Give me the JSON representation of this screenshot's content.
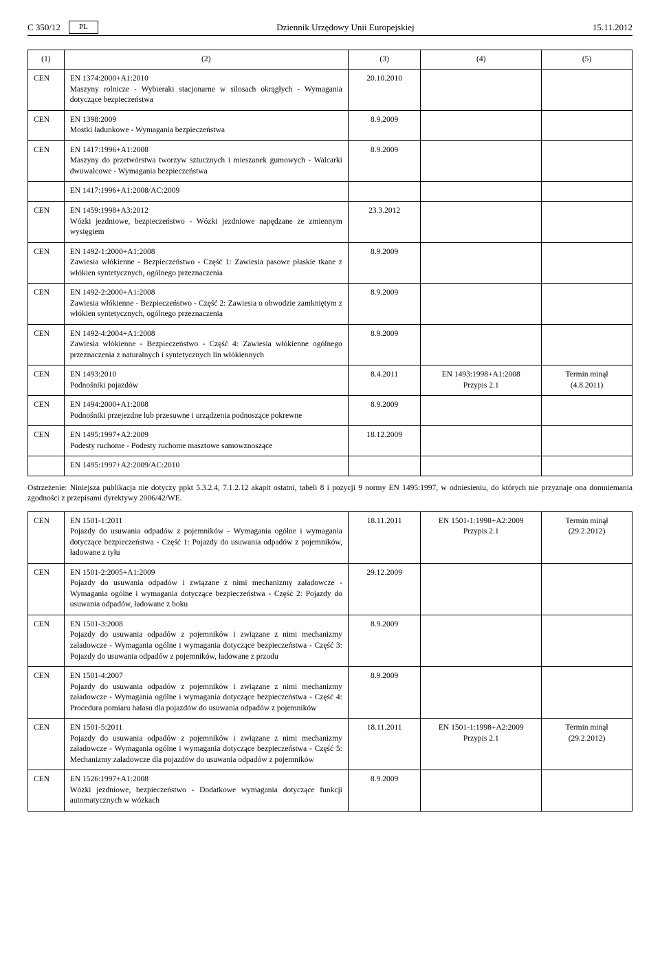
{
  "header": {
    "page_left": "C 350/12",
    "lang": "PL",
    "title_center": "Dziennik Urzędowy Unii Europejskiej",
    "date_right": "15.11.2012"
  },
  "columns": [
    "(1)",
    "(2)",
    "(3)",
    "(4)",
    "(5)"
  ],
  "rows": [
    {
      "c1": "CEN",
      "code": "EN 1374:2000+A1:2010",
      "desc": "Maszyny rolnicze - Wybieraki stacjonarne w silosach okrągłych - Wymagania dotyczące bezpieczeństwa",
      "c3": "20.10.2010",
      "c4": "",
      "c5": ""
    },
    {
      "c1": "CEN",
      "code": "EN 1398:2009",
      "desc": "Mostki ładunkowe - Wymagania bezpieczeństwa",
      "c3": "8.9.2009",
      "c4": "",
      "c5": ""
    },
    {
      "c1": "CEN",
      "code": "EN 1417:1996+A1:2008",
      "desc": "Maszyny do przetwórstwa tworzyw sztucznych i mieszanek gumowych - Walcarki dwuwalcowe - Wymagania bezpieczeństwa",
      "c3": "8.9.2009",
      "c4": "",
      "c5": ""
    },
    {
      "c1": "",
      "code": "EN 1417:1996+A1:2008/AC:2009",
      "desc": "",
      "c3": "",
      "c4": "",
      "c5": ""
    },
    {
      "c1": "CEN",
      "code": "EN 1459:1998+A3:2012",
      "desc": "Wózki jezdniowe, bezpieczeństwo - Wózki jezdniowe napędzane ze zmiennym wysięgiem",
      "c3": "23.3.2012",
      "c4": "",
      "c5": ""
    },
    {
      "c1": "CEN",
      "code": "EN 1492-1:2000+A1:2008",
      "desc": "Zawiesia włókienne - Bezpieczeństwo - Część 1: Zawiesia pasowe płaskie tkane z włókien syntetycznych, ogólnego przeznaczenia",
      "c3": "8.9.2009",
      "c4": "",
      "c5": ""
    },
    {
      "c1": "CEN",
      "code": "EN 1492-2:2000+A1:2008",
      "desc": "Zawiesia włókienne - Bezpieczeństwo - Część 2: Zawiesia o obwodzie zamkniętym z włókien syntetycznych, ogólnego przeznaczenia",
      "c3": "8.9.2009",
      "c4": "",
      "c5": ""
    },
    {
      "c1": "CEN",
      "code": "EN 1492-4:2004+A1:2008",
      "desc": "Zawiesia włókienne - Bezpieczeństwo - Część 4: Zawiesia włókienne ogólnego przeznaczenia z naturalnych i syntetycznych lin włókiennych",
      "c3": "8.9.2009",
      "c4": "",
      "c5": ""
    },
    {
      "c1": "CEN",
      "code": "EN 1493:2010",
      "desc": "Podnośniki pojazdów",
      "c3": "8.4.2011",
      "c4": "EN 1493:1998+A1:2008\nPrzypis 2.1",
      "c5": "Termin minął\n(4.8.2011)"
    },
    {
      "c1": "CEN",
      "code": "EN 1494:2000+A1:2008",
      "desc": "Podnośniki przejezdne lub przesuwne i urządzenia podnoszące pokrewne",
      "c3": "8.9.2009",
      "c4": "",
      "c5": ""
    },
    {
      "c1": "CEN",
      "code": "EN 1495:1997+A2:2009",
      "desc": "Podesty ruchome - Podesty ruchome masztowe samowznoszące",
      "c3": "18.12.2009",
      "c4": "",
      "c5": ""
    },
    {
      "c1": "",
      "code": "EN 1495:1997+A2:2009/AC:2010",
      "desc": "",
      "c3": "",
      "c4": "",
      "c5": ""
    }
  ],
  "warning": "Ostrzeżenie: Niniejsza publikacja nie dotyczy ppkt 5.3.2.4, 7.1.2.12 akapit ostatni, tabeli 8 i pozycji 9 normy EN 1495:1997, w odniesieniu, do których nie przyznaje ona domniemania zgodności z przepisami dyrektywy 2006/42/WE.",
  "rows2": [
    {
      "c1": "CEN",
      "code": "EN 1501-1:2011",
      "desc": "Pojazdy do usuwania odpadów z pojemników - Wymagania ogólne i wymagania dotyczące bezpieczeństwa - Część 1: Pojazdy do usuwania odpadów z pojemników, ładowane z tyłu",
      "c3": "18.11.2011",
      "c4": "EN 1501-1:1998+A2:2009\nPrzypis 2.1",
      "c5": "Termin minął\n(29.2.2012)"
    },
    {
      "c1": "CEN",
      "code": "EN 1501-2:2005+A1:2009",
      "desc": "Pojazdy do usuwania odpadów i związane z nimi mechanizmy załadowcze - Wymagania ogólne i wymagania dotyczące bezpieczeństwa - Część 2: Pojazdy do usuwania odpadów, ładowane z boku",
      "c3": "29.12.2009",
      "c4": "",
      "c5": ""
    },
    {
      "c1": "CEN",
      "code": "EN 1501-3:2008",
      "desc": "Pojazdy do usuwania odpadów z pojemników i związane z nimi mechanizmy załadowcze - Wymagania ogólne i wymagania dotyczące bezpieczeństwa - Część 3: Pojazdy do usuwania odpadów z pojemników, ładowane z przodu",
      "c3": "8.9.2009",
      "c4": "",
      "c5": ""
    },
    {
      "c1": "CEN",
      "code": "EN 1501-4:2007",
      "desc": "Pojazdy do usuwania odpadów z pojemników i związane z nimi mechanizmy załadowcze - Wymagania ogólne i wymagania dotyczące bezpieczeństwa - Część 4: Procedura pomiaru hałasu dla pojazdów do usuwania odpadów z pojemników",
      "c3": "8.9.2009",
      "c4": "",
      "c5": ""
    },
    {
      "c1": "CEN",
      "code": "EN 1501-5:2011",
      "desc": "Pojazdy do usuwania odpadów z pojemników i związane z nimi mechanizmy załadowcze - Wymagania ogólne i wymagania dotyczące bezpieczeństwa - Część 5: Mechanizmy załadowcze dla pojazdów do usuwania odpadów z pojemników",
      "c3": "18.11.2011",
      "c4": "EN 1501-1:1998+A2:2009\nPrzypis 2.1",
      "c5": "Termin minął\n(29.2.2012)"
    },
    {
      "c1": "CEN",
      "code": "EN 1526:1997+A1:2008",
      "desc": "Wózki jezdniowe, bezpieczeństwo - Dodatkowe wymagania dotyczące funkcji automatycznych w wózkach",
      "c3": "8.9.2009",
      "c4": "",
      "c5": ""
    }
  ]
}
